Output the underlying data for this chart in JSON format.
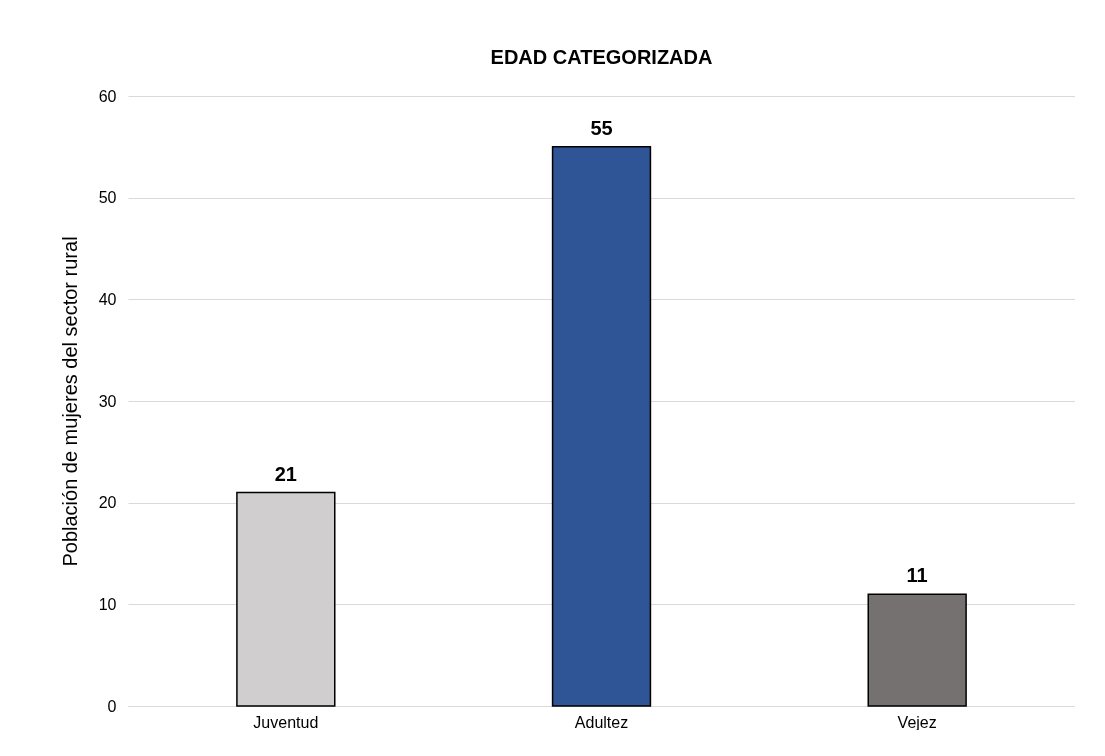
{
  "chart_data": {
    "type": "bar",
    "title": "EDAD CATEGORIZADA",
    "ylabel": "Población de mujeres del sector rural",
    "categories": [
      "Juventud",
      "Adultez",
      "Vejez"
    ],
    "values": [
      21,
      55,
      11
    ],
    "colors": [
      "#d0cece",
      "#2f5597",
      "#767171"
    ],
    "ylim": [
      0,
      60
    ],
    "yticks": [
      0,
      10,
      20,
      30,
      40,
      50,
      60
    ],
    "grid": "y",
    "data_labels": true
  }
}
